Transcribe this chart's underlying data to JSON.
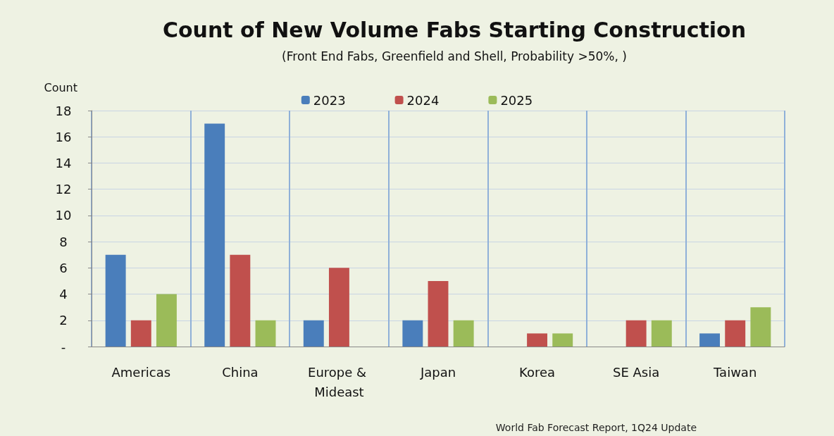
{
  "chart_data": {
    "type": "bar",
    "title": "Count of New Volume Fabs Starting Construction",
    "subtitle": "(Front End Fabs, Greenfield and Shell, Probability >50%, )",
    "ylabel": "Count",
    "categories": [
      "Americas",
      "China",
      "Europe & Mideast",
      "Japan",
      "Korea",
      "SE Asia",
      "Taiwan"
    ],
    "series": [
      {
        "name": "2023",
        "color": "#4a7ebb",
        "values": [
          7,
          17,
          2,
          2,
          0,
          0,
          1
        ]
      },
      {
        "name": "2024",
        "color": "#c0504d",
        "values": [
          2,
          7,
          6,
          5,
          1,
          2,
          2
        ]
      },
      {
        "name": "2025",
        "color": "#9bbb59",
        "values": [
          4,
          2,
          0,
          2,
          1,
          2,
          3
        ]
      }
    ],
    "ylim": [
      0,
      18
    ],
    "yticks": [
      {
        "value": 0,
        "label": "-"
      },
      2,
      4,
      6,
      8,
      10,
      12,
      14,
      16,
      18
    ],
    "grid": true,
    "legend": "top",
    "annotations": [
      "World Fab Forecast Report, 1Q24 Update"
    ]
  }
}
